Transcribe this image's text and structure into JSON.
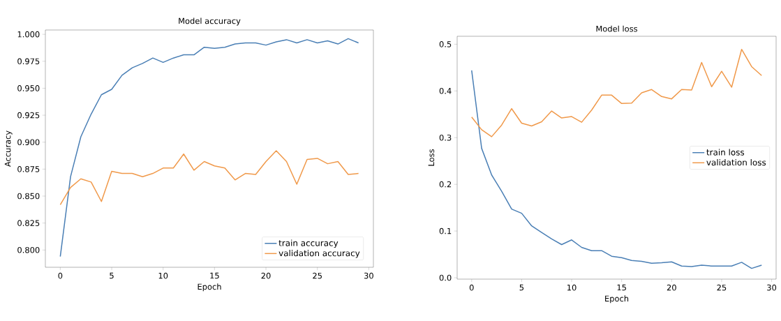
{
  "chart_data": [
    {
      "type": "line",
      "title": "Model accuracy",
      "xlabel": "Epoch",
      "ylabel": "Accuracy",
      "legend": "bottom right",
      "x": [
        0,
        1,
        2,
        3,
        4,
        5,
        6,
        7,
        8,
        9,
        10,
        11,
        12,
        13,
        14,
        15,
        16,
        17,
        18,
        19,
        20,
        21,
        22,
        23,
        24,
        25,
        26,
        27,
        28,
        29
      ],
      "xlim": [
        -1.45,
        30.45
      ],
      "ylim": [
        0.784,
        1.004
      ],
      "xticks": [
        0,
        5,
        10,
        15,
        20,
        25,
        30
      ],
      "yticks": [
        {
          "value": 0.8,
          "label": "0.800"
        },
        {
          "value": 0.825,
          "label": "0.825"
        },
        {
          "value": 0.85,
          "label": "0.850"
        },
        {
          "value": 0.875,
          "label": "0.875"
        },
        {
          "value": 0.9,
          "label": "0.900"
        },
        {
          "value": 0.925,
          "label": "0.925"
        },
        {
          "value": 0.95,
          "label": "0.950"
        },
        {
          "value": 0.975,
          "label": "0.975"
        },
        {
          "value": 1.0,
          "label": "1.000"
        }
      ],
      "series": [
        {
          "name": "train accuracy",
          "color": "#4a7fb5",
          "values": [
            0.794,
            0.868,
            0.905,
            0.926,
            0.944,
            0.949,
            0.962,
            0.969,
            0.973,
            0.978,
            0.974,
            0.978,
            0.981,
            0.981,
            0.988,
            0.987,
            0.988,
            0.991,
            0.992,
            0.992,
            0.99,
            0.993,
            0.995,
            0.992,
            0.995,
            0.992,
            0.994,
            0.991,
            0.996,
            0.992
          ]
        },
        {
          "name": "validation accuracy",
          "color": "#f0994a",
          "values": [
            0.842,
            0.858,
            0.866,
            0.863,
            0.845,
            0.873,
            0.871,
            0.871,
            0.868,
            0.871,
            0.876,
            0.876,
            0.889,
            0.874,
            0.882,
            0.878,
            0.876,
            0.865,
            0.871,
            0.87,
            0.882,
            0.892,
            0.882,
            0.861,
            0.884,
            0.885,
            0.88,
            0.882,
            0.87,
            0.871
          ]
        }
      ]
    },
    {
      "type": "line",
      "title": "Model loss",
      "xlabel": "Epoch",
      "ylabel": "Loss",
      "legend": "right",
      "x": [
        0,
        1,
        2,
        3,
        4,
        5,
        6,
        7,
        8,
        9,
        10,
        11,
        12,
        13,
        14,
        15,
        16,
        17,
        18,
        19,
        20,
        21,
        22,
        23,
        24,
        25,
        26,
        27,
        28,
        29
      ],
      "xlim": [
        -1.45,
        30.45
      ],
      "ylim": [
        -0.003,
        0.517
      ],
      "xticks": [
        0,
        5,
        10,
        15,
        20,
        25,
        30
      ],
      "yticks": [
        {
          "value": 0,
          "label": "0.0"
        },
        {
          "value": 0.1,
          "label": "0.1"
        },
        {
          "value": 0.2,
          "label": "0.2"
        },
        {
          "value": 0.3,
          "label": "0.3"
        },
        {
          "value": 0.4,
          "label": "0.4"
        },
        {
          "value": 0.5,
          "label": "0.5"
        }
      ],
      "series": [
        {
          "name": "train loss",
          "color": "#4a7fb5",
          "values": [
            0.444,
            0.277,
            0.22,
            0.185,
            0.147,
            0.138,
            0.111,
            0.097,
            0.083,
            0.071,
            0.081,
            0.065,
            0.058,
            0.058,
            0.046,
            0.043,
            0.037,
            0.035,
            0.031,
            0.032,
            0.034,
            0.025,
            0.024,
            0.027,
            0.025,
            0.025,
            0.025,
            0.033,
            0.02,
            0.027
          ]
        },
        {
          "name": "validation loss",
          "color": "#f0994a",
          "values": [
            0.344,
            0.317,
            0.302,
            0.327,
            0.362,
            0.331,
            0.325,
            0.334,
            0.357,
            0.342,
            0.345,
            0.333,
            0.359,
            0.391,
            0.391,
            0.373,
            0.374,
            0.396,
            0.403,
            0.388,
            0.383,
            0.403,
            0.402,
            0.461,
            0.409,
            0.442,
            0.408,
            0.489,
            0.452,
            0.433
          ]
        }
      ]
    }
  ]
}
